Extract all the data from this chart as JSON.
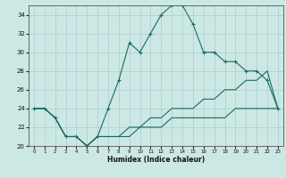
{
  "xlabel": "Humidex (Indice chaleur)",
  "ylabel": "",
  "bg_color": "#cce8e4",
  "grid_color": "#aacccc",
  "line_color": "#1a6b5e",
  "xlim": [
    -0.5,
    23.5
  ],
  "ylim": [
    20,
    35
  ],
  "xticks": [
    0,
    1,
    2,
    3,
    4,
    5,
    6,
    7,
    8,
    9,
    10,
    11,
    12,
    13,
    14,
    15,
    16,
    17,
    18,
    19,
    20,
    21,
    22,
    23
  ],
  "yticks": [
    20,
    22,
    24,
    26,
    28,
    30,
    32,
    34
  ],
  "line1_x": [
    0,
    1,
    2,
    3,
    4,
    5,
    6,
    7,
    8,
    9,
    10,
    11,
    12,
    13,
    14,
    15,
    16,
    17,
    18,
    19,
    20,
    21,
    22,
    23
  ],
  "line1_y": [
    24,
    24,
    23,
    21,
    21,
    20,
    21,
    24,
    27,
    31,
    30,
    32,
    34,
    35,
    35,
    33,
    30,
    30,
    29,
    29,
    28,
    28,
    27,
    24
  ],
  "line2_x": [
    0,
    1,
    2,
    3,
    4,
    5,
    6,
    7,
    8,
    9,
    10,
    11,
    12,
    13,
    14,
    15,
    16,
    17,
    18,
    19,
    20,
    21,
    22,
    23
  ],
  "line2_y": [
    24,
    24,
    23,
    21,
    21,
    20,
    21,
    21,
    21,
    22,
    22,
    23,
    23,
    24,
    24,
    24,
    25,
    25,
    26,
    26,
    27,
    27,
    28,
    24
  ],
  "line3_x": [
    0,
    1,
    2,
    3,
    4,
    5,
    6,
    7,
    8,
    9,
    10,
    11,
    12,
    13,
    14,
    15,
    16,
    17,
    18,
    19,
    20,
    21,
    22,
    23
  ],
  "line3_y": [
    24,
    24,
    23,
    21,
    21,
    20,
    21,
    21,
    21,
    21,
    22,
    22,
    22,
    23,
    23,
    23,
    23,
    23,
    23,
    24,
    24,
    24,
    24,
    24
  ]
}
